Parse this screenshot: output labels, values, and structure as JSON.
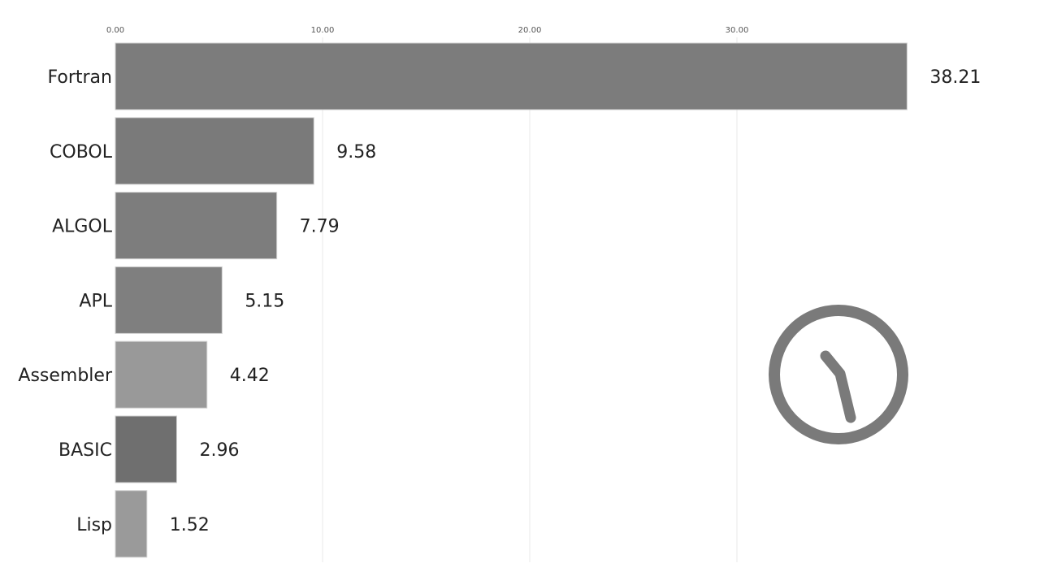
{
  "chart_data": {
    "type": "bar",
    "orientation": "horizontal",
    "title": "",
    "xlabel": "",
    "ylabel": "",
    "xlim": [
      0,
      38.21
    ],
    "x_ticks": [
      "0.00",
      "10.00",
      "20.00",
      "30.00"
    ],
    "x_tick_values": [
      0,
      10,
      20,
      30
    ],
    "grid": true,
    "categories": [
      "Fortran",
      "COBOL",
      "ALGOL",
      "APL",
      "Assembler",
      "BASIC",
      "Lisp"
    ],
    "values": [
      38.21,
      9.58,
      7.79,
      5.15,
      4.42,
      2.96,
      1.52
    ],
    "value_labels": [
      "38.21",
      "9.58",
      "7.79",
      "5.15",
      "4.42",
      "2.96",
      "1.52"
    ],
    "colors": [
      "#7c7c7c",
      "#7a7a7a",
      "#7d7d7d",
      "#7f7f7f",
      "#999999",
      "#6f6f6f",
      "#9a9a9a"
    ]
  },
  "timer_icon": {
    "name": "timer-clock-icon",
    "color": "#7a7a7a"
  }
}
